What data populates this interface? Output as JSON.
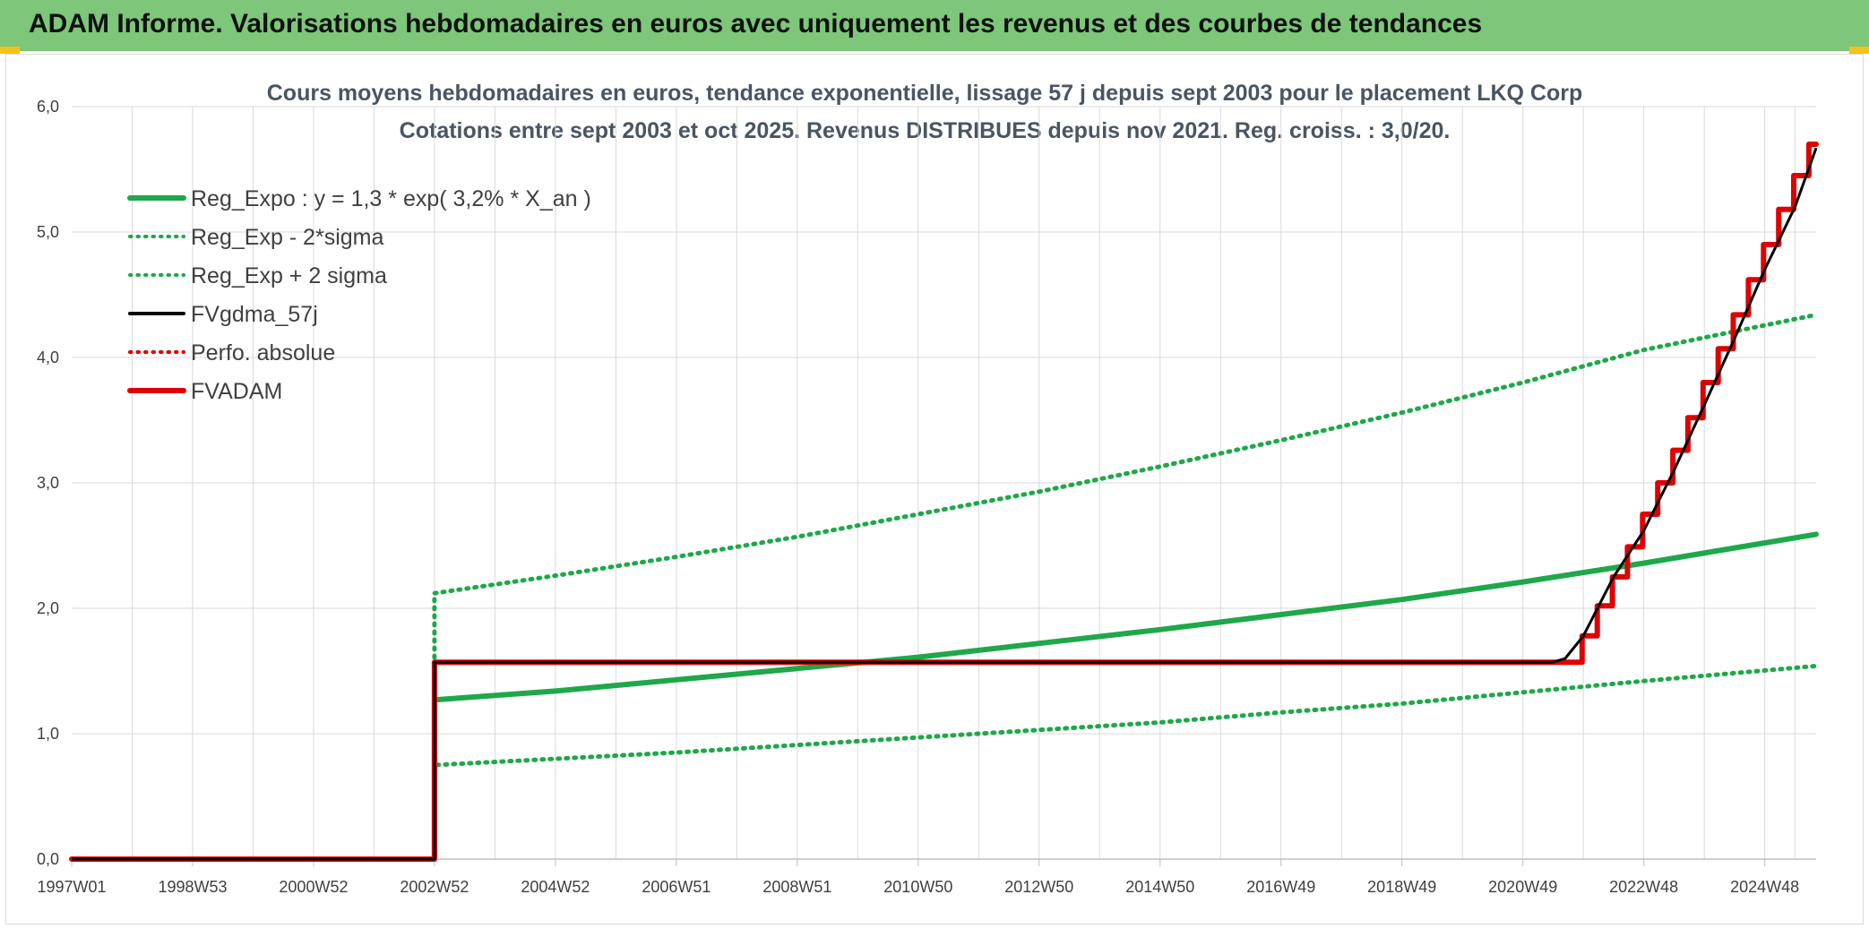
{
  "banner": {
    "title": "ADAM Informe. Valorisations hebdomadaires en euros avec uniquement les revenus et des courbes de tendances",
    "color": "#7dc67a",
    "corner_color": "#f0c419"
  },
  "chart_data": {
    "type": "line",
    "title": "Cours moyens hebdomadaires en euros, tendance exponentielle, lissage 57 j depuis sept 2003 pour le placement LKQ Corp",
    "subtitle": "Cotations entre sept 2003 et oct 2025. Revenus DISTRIBUES depuis nov 2021. Reg. croiss. : 3,0/20.",
    "xlabel": "",
    "ylabel": "",
    "ylim": [
      0,
      6
    ],
    "xlim": [
      1997.0,
      2025.85
    ],
    "y_ticks": [
      "0,0",
      "1,0",
      "2,0",
      "3,0",
      "4,0",
      "5,0",
      "6,0"
    ],
    "x_ticks": [
      {
        "label": "1997W01",
        "x": 1997.0
      },
      {
        "label": "1998W53",
        "x": 1999.0
      },
      {
        "label": "2000W52",
        "x": 2001.0
      },
      {
        "label": "2002W52",
        "x": 2003.0
      },
      {
        "label": "2004W52",
        "x": 2005.0
      },
      {
        "label": "2006W51",
        "x": 2007.0
      },
      {
        "label": "2008W51",
        "x": 2009.0
      },
      {
        "label": "2010W50",
        "x": 2011.0
      },
      {
        "label": "2012W50",
        "x": 2013.0
      },
      {
        "label": "2014W50",
        "x": 2015.0
      },
      {
        "label": "2016W49",
        "x": 2017.0
      },
      {
        "label": "2018W49",
        "x": 2019.0
      },
      {
        "label": "2020W49",
        "x": 2021.0
      },
      {
        "label": "2022W48",
        "x": 2023.0
      },
      {
        "label": "2024W48",
        "x": 2025.0
      }
    ],
    "grid": true,
    "legend_position": "top-left",
    "series": [
      {
        "name": "Reg_Expo : y = 1,3 * exp( 3,2% *  X_an )",
        "color": "#1fa84a",
        "style": "solid",
        "x": [
          2003.0,
          2003.0,
          2005.0,
          2007.0,
          2009.0,
          2011.0,
          2013.0,
          2015.0,
          2017.0,
          2019.0,
          2021.0,
          2023.0,
          2025.85
        ],
        "y": [
          0.0,
          1.27,
          1.34,
          1.43,
          1.52,
          1.61,
          1.72,
          1.83,
          1.95,
          2.07,
          2.21,
          2.36,
          2.59
        ]
      },
      {
        "name": "Reg_Exp - 2*sigma",
        "color": "#1fa84a",
        "style": "dotted",
        "x": [
          2003.0,
          2003.0,
          2005.0,
          2007.0,
          2009.0,
          2011.0,
          2013.0,
          2015.0,
          2017.0,
          2019.0,
          2021.0,
          2023.0,
          2025.85
        ],
        "y": [
          0.0,
          0.75,
          0.8,
          0.85,
          0.91,
          0.97,
          1.03,
          1.09,
          1.17,
          1.24,
          1.33,
          1.42,
          1.54
        ]
      },
      {
        "name": "Reg_Exp + 2 sigma",
        "color": "#1fa84a",
        "style": "dotted",
        "x": [
          2003.0,
          2003.0,
          2005.0,
          2007.0,
          2009.0,
          2011.0,
          2013.0,
          2015.0,
          2017.0,
          2019.0,
          2021.0,
          2023.0,
          2025.85
        ],
        "y": [
          0.0,
          2.12,
          2.26,
          2.41,
          2.57,
          2.75,
          2.93,
          3.13,
          3.34,
          3.56,
          3.8,
          4.06,
          4.34
        ]
      },
      {
        "name": "FVgdma_57j",
        "color": "#000000",
        "style": "solid",
        "x": [
          1997.0,
          2003.0,
          2003.0,
          2021.5,
          2021.7,
          2022.0,
          2022.5,
          2023.0,
          2023.5,
          2024.0,
          2024.5,
          2025.0,
          2025.5,
          2025.85
        ],
        "y": [
          0.0,
          0.0,
          1.57,
          1.57,
          1.6,
          1.78,
          2.25,
          2.62,
          3.1,
          3.62,
          4.15,
          4.7,
          5.2,
          5.67
        ]
      },
      {
        "name": "Perfo. absolue",
        "color": "#e00000",
        "style": "dotted",
        "x": [
          2003.0,
          2003.0
        ],
        "y": [
          0.6,
          1.57
        ]
      },
      {
        "name": "FVADAM",
        "color": "#e00000",
        "style": "solid",
        "x": [
          1997.0,
          2003.0,
          2003.0,
          2021.98
        ],
        "y": [
          0.0,
          0.0,
          1.57,
          1.57
        ]
      }
    ],
    "fvadam_steps": {
      "start_x": 2021.98,
      "step_years": 0.25,
      "values": [
        1.57,
        1.78,
        2.02,
        2.25,
        2.49,
        2.75,
        3.0,
        3.26,
        3.52,
        3.8,
        4.07,
        4.34,
        4.62,
        4.9,
        5.18,
        5.45,
        5.7
      ]
    }
  }
}
